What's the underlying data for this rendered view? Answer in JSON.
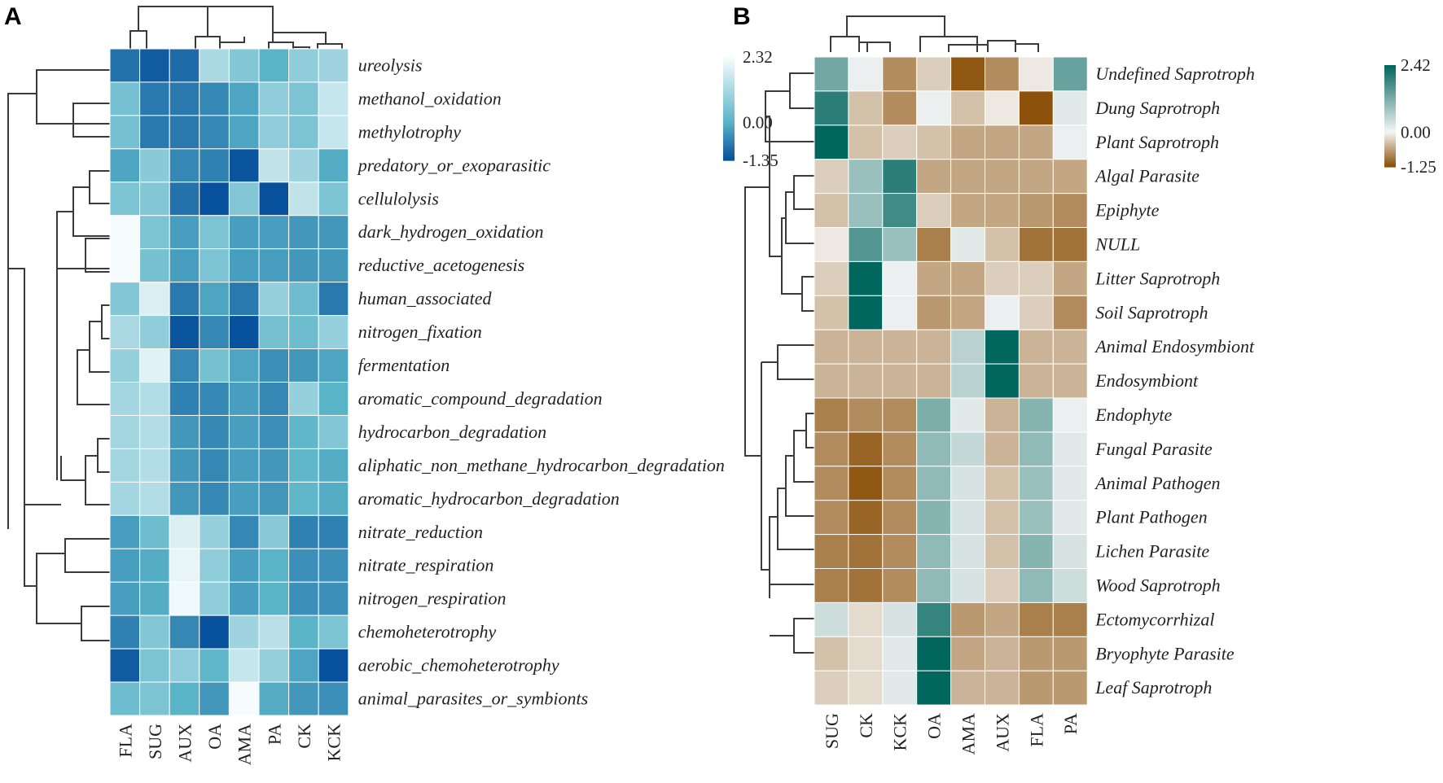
{
  "chart_data": [
    {
      "type": "heatmap",
      "panel": "A",
      "columns": [
        "FLA",
        "SUG",
        "AUX",
        "OA",
        "AMA",
        "PA",
        "CK",
        "KCK"
      ],
      "rows": [
        "ureolysis",
        "methanol_oxidation",
        "methylotrophy",
        "predatory_or_exoparasitic",
        "cellulolysis",
        "dark_hydrogen_oxidation",
        "reductive_acetogenesis",
        "human_associated",
        "nitrogen_fixation",
        "fermentation",
        "aromatic_compound_degradation",
        "hydrocarbon_degradation",
        "aliphatic_non_methane_hydrocarbon_degradation",
        "aromatic_hydrocarbon_degradation",
        "nitrate_reduction",
        "nitrate_respiration",
        "nitrogen_respiration",
        "chemoheterotrophy",
        "aerobic_chemoheterotrophy",
        "animal_parasites_or_symbionts"
      ],
      "values": [
        [
          -0.9,
          -1.2,
          -1.0,
          1.2,
          0.6,
          0.0,
          0.8,
          1.0
        ],
        [
          0.4,
          -0.8,
          -0.8,
          -0.6,
          -0.2,
          0.8,
          0.5,
          1.6
        ],
        [
          0.4,
          -0.8,
          -0.8,
          -0.6,
          -0.2,
          0.8,
          0.5,
          1.6
        ],
        [
          -0.2,
          0.7,
          -0.6,
          -0.7,
          -1.3,
          1.5,
          1.0,
          -0.1
        ],
        [
          0.5,
          0.6,
          -0.9,
          -1.35,
          0.6,
          -1.35,
          1.5,
          0.5
        ],
        [
          2.3,
          0.5,
          -0.3,
          0.5,
          -0.3,
          -0.3,
          -0.4,
          -0.4
        ],
        [
          2.3,
          0.4,
          -0.3,
          0.5,
          -0.3,
          -0.3,
          -0.4,
          -0.4
        ],
        [
          0.6,
          1.9,
          -0.8,
          -0.2,
          -0.8,
          0.9,
          0.3,
          -0.8
        ],
        [
          1.2,
          0.8,
          -1.3,
          -0.6,
          -1.35,
          0.4,
          0.3,
          0.9
        ],
        [
          0.9,
          2.0,
          -0.6,
          0.4,
          -0.2,
          -0.5,
          -0.4,
          -0.2
        ],
        [
          1.1,
          1.3,
          -0.7,
          -0.6,
          -0.3,
          -0.6,
          0.9,
          0.0
        ],
        [
          1.1,
          1.3,
          -0.4,
          -0.6,
          -0.3,
          -0.5,
          0.1,
          0.6
        ],
        [
          1.1,
          1.3,
          -0.4,
          -0.6,
          -0.3,
          -0.4,
          0.1,
          -0.1
        ],
        [
          1.1,
          1.3,
          -0.4,
          -0.6,
          -0.3,
          -0.4,
          0.1,
          -0.1
        ],
        [
          -0.3,
          0.3,
          1.9,
          0.9,
          -0.6,
          0.7,
          -0.7,
          -0.7
        ],
        [
          -0.3,
          -0.1,
          2.1,
          0.8,
          -0.3,
          0.0,
          -0.5,
          -0.5
        ],
        [
          -0.3,
          -0.1,
          2.2,
          0.8,
          -0.3,
          0.0,
          -0.5,
          -0.5
        ],
        [
          -0.7,
          0.6,
          -0.6,
          -1.35,
          1.0,
          1.4,
          0.0,
          0.5
        ],
        [
          -1.2,
          0.5,
          0.8,
          0.1,
          1.6,
          0.9,
          -0.2,
          -1.35
        ],
        [
          0.3,
          0.5,
          0.0,
          -0.4,
          2.3,
          -0.1,
          -0.4,
          -0.5
        ]
      ],
      "color_scale": {
        "min": -1.35,
        "mid": 0.0,
        "max": 2.32,
        "colors": [
          "#08519c",
          "#5ab4c8",
          "#f7fcfd"
        ]
      },
      "legend_ticks": [
        "2.32",
        "0.00",
        "-1.35"
      ]
    },
    {
      "type": "heatmap",
      "panel": "B",
      "columns": [
        "SUG",
        "CK",
        "KCK",
        "OA",
        "AMA",
        "AUX",
        "FLA",
        "PA"
      ],
      "rows": [
        "Undefined Saprotroph",
        "Dung Saprotroph",
        "Plant Saprotroph",
        "Algal Parasite",
        "Epiphyte",
        "NULL",
        "Litter Saprotroph",
        "Soil Saprotroph",
        "Animal Endosymbiont",
        "Endosymbiont",
        "Endophyte",
        "Fungal Parasite",
        "Animal Pathogen",
        "Plant Pathogen",
        "Lichen Parasite",
        "Wood Saprotroph",
        "Ectomycorrhizal",
        "Bryophyte Parasite",
        "Leaf Saprotroph"
      ],
      "values": [
        [
          1.3,
          0.1,
          -0.8,
          -0.3,
          -1.2,
          -0.8,
          -0.1,
          1.4
        ],
        [
          2.0,
          -0.4,
          -0.8,
          0.1,
          -0.4,
          -0.1,
          -1.25,
          0.2
        ],
        [
          2.42,
          -0.4,
          -0.3,
          -0.4,
          -0.6,
          -0.6,
          -0.6,
          0.1
        ],
        [
          -0.3,
          0.9,
          2.0,
          -0.6,
          -0.6,
          -0.6,
          -0.6,
          -0.6
        ],
        [
          -0.4,
          0.9,
          1.8,
          -0.3,
          -0.6,
          -0.6,
          -0.7,
          -0.8
        ],
        [
          -0.1,
          1.6,
          0.9,
          -0.9,
          0.2,
          -0.4,
          -1.0,
          -1.0
        ],
        [
          -0.3,
          2.42,
          0.1,
          -0.6,
          -0.6,
          -0.3,
          -0.3,
          -0.6
        ],
        [
          -0.4,
          2.42,
          0.1,
          -0.7,
          -0.6,
          0.1,
          -0.3,
          -0.8
        ],
        [
          -0.5,
          -0.5,
          -0.5,
          -0.5,
          0.6,
          2.42,
          -0.5,
          -0.5
        ],
        [
          -0.5,
          -0.5,
          -0.5,
          -0.5,
          0.6,
          2.42,
          -0.5,
          -0.5
        ],
        [
          -0.9,
          -0.8,
          -0.8,
          1.2,
          0.2,
          -0.5,
          1.1,
          0.1
        ],
        [
          -0.8,
          -1.1,
          -0.8,
          1.0,
          0.5,
          -0.5,
          1.0,
          0.2
        ],
        [
          -0.8,
          -1.2,
          -0.8,
          1.0,
          0.3,
          -0.4,
          0.9,
          0.2
        ],
        [
          -0.8,
          -1.1,
          -0.8,
          1.1,
          0.3,
          -0.4,
          0.9,
          0.2
        ],
        [
          -0.9,
          -1.0,
          -0.8,
          1.0,
          0.3,
          -0.4,
          1.1,
          0.3
        ],
        [
          -0.9,
          -1.0,
          -0.8,
          1.0,
          0.3,
          -0.3,
          1.0,
          0.4
        ],
        [
          0.4,
          -0.2,
          0.3,
          1.9,
          -0.7,
          -0.6,
          -0.9,
          -0.9
        ],
        [
          -0.4,
          -0.2,
          0.2,
          2.42,
          -0.6,
          -0.5,
          -0.7,
          -0.7
        ],
        [
          -0.3,
          -0.2,
          0.2,
          2.42,
          -0.5,
          -0.5,
          -0.7,
          -0.7
        ]
      ],
      "color_scale": {
        "min": -1.25,
        "mid": 0.0,
        "max": 2.42,
        "colors": [
          "#8c510a",
          "#f5f5f5",
          "#01665e"
        ]
      },
      "legend_ticks": [
        "2.42",
        "0.00",
        "-1.25"
      ]
    }
  ]
}
